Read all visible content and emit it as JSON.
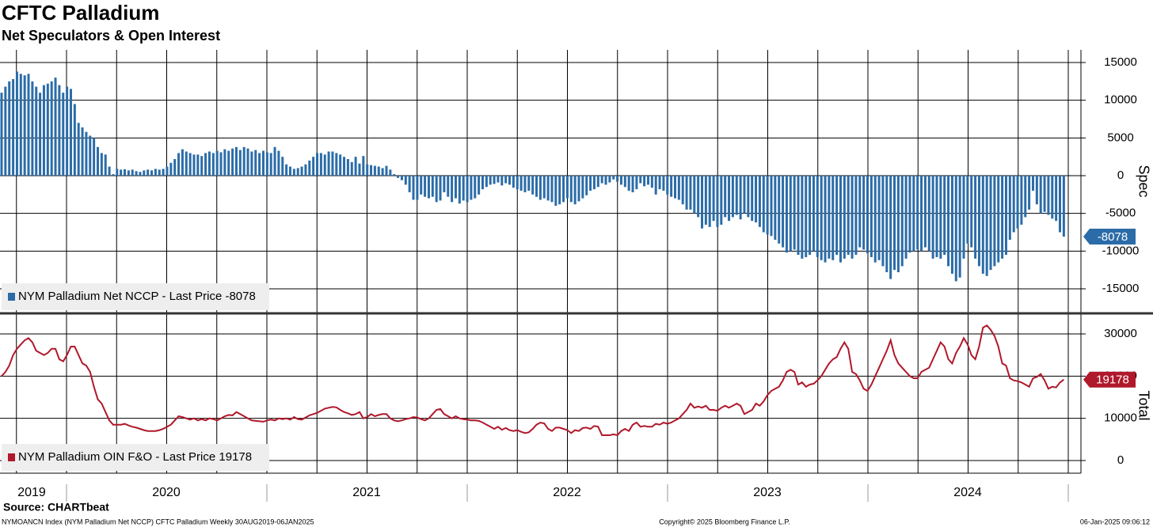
{
  "chart_data": [
    {
      "type": "bar",
      "title": "CFTC Palladium",
      "subtitle": "Net Speculators & Open Interest",
      "y_label": "Spec",
      "ylim": [
        -18150,
        16680
      ],
      "yticks": [
        15000,
        10000,
        5000,
        0,
        -5000,
        -10000,
        -15000
      ],
      "grid": true,
      "series": [
        {
          "name": "NYM Palladium Net NCCP - Last Price -8078",
          "color": "#2b6ca8",
          "values": [
            11000,
            11800,
            12500,
            12800,
            13800,
            13500,
            13300,
            13500,
            12500,
            11800,
            11000,
            12000,
            12200,
            12500,
            13000,
            12000,
            11000,
            11800,
            11500,
            9500,
            7000,
            6400,
            5800,
            5300,
            5000,
            3800,
            3000,
            2800,
            1200,
            200,
            900,
            800,
            850,
            700,
            800,
            600,
            500,
            700,
            800,
            700,
            900,
            800,
            900,
            1200,
            1700,
            2200,
            3000,
            3500,
            3200,
            3000,
            2800,
            2800,
            2600,
            3000,
            3200,
            3000,
            3300,
            3100,
            3500,
            3300,
            3600,
            3800,
            3400,
            3800,
            3600,
            3200,
            3400,
            3000,
            3300,
            3100,
            3000,
            3800,
            3300,
            2500,
            1500,
            1200,
            900,
            1000,
            1200,
            1500,
            2000,
            2500,
            3000,
            3000,
            2800,
            3200,
            3200,
            3000,
            2800,
            2500,
            2200,
            1800,
            2500,
            1600,
            2600,
            1500,
            1400,
            1300,
            1200,
            1000,
            1300,
            800,
            200,
            -300,
            -600,
            -1200,
            -2200,
            -3200,
            -3200,
            -2500,
            -2800,
            -3000,
            -2800,
            -3500,
            -3300,
            -2200,
            -2800,
            -3500,
            -3000,
            -3700,
            -3300,
            -3500,
            -3200,
            -3000,
            -2500,
            -1800,
            -1500,
            -1200,
            -1100,
            -900,
            -1300,
            -1000,
            -1200,
            -1600,
            -1800,
            -2000,
            -2200,
            -2000,
            -2500,
            -2800,
            -3200,
            -3000,
            -3300,
            -3500,
            -4000,
            -3800,
            -3500,
            -3000,
            -3500,
            -3800,
            -3400,
            -3000,
            -2600,
            -2000,
            -1800,
            -1500,
            -1000,
            -1200,
            -900,
            -500,
            -800,
            -1200,
            -1500,
            -2000,
            -2200,
            -1800,
            -1000,
            -1400,
            -1200,
            -1600,
            -2500,
            -1800,
            -2000,
            -2500,
            -2800,
            -3000,
            -3200,
            -3800,
            -4500,
            -4500,
            -5000,
            -5500,
            -7000,
            -6500,
            -6800,
            -6000,
            -6800,
            -6500,
            -5500,
            -6000,
            -5500,
            -5200,
            -5800,
            -5000,
            -5500,
            -6000,
            -6200,
            -6800,
            -7500,
            -7800,
            -8000,
            -8500,
            -9000,
            -9500,
            -10200,
            -10000,
            -9800,
            -10500,
            -11000,
            -10800,
            -10500,
            -10000,
            -10800,
            -11200,
            -11500,
            -11000,
            -11200,
            -10500,
            -11500,
            -11000,
            -10500,
            -11000,
            -10500,
            -9500,
            -9800,
            -10300,
            -10800,
            -11500,
            -11200,
            -12000,
            -12800,
            -13700,
            -12500,
            -12800,
            -12000,
            -11000,
            -10200,
            -10000,
            -9800,
            -10000,
            -9500,
            -10000,
            -11000,
            -10800,
            -11000,
            -10500,
            -12000,
            -13000,
            -14000,
            -13500,
            -11000,
            -9000,
            -9500,
            -11000,
            -12000,
            -13000,
            -13300,
            -12500,
            -12000,
            -11500,
            -11000,
            -10500,
            -8500,
            -7500,
            -7000,
            -6500,
            -5500,
            -4500,
            -2000,
            -3800,
            -5000,
            -4800,
            -5200,
            -5700,
            -6000,
            -7500,
            -8078
          ]
        }
      ]
    },
    {
      "type": "line",
      "y_label": "Total",
      "ylim": [
        -3000,
        34690
      ],
      "yticks": [
        30000,
        20000,
        10000,
        0
      ],
      "grid": true,
      "x_labels": [
        "2019",
        "2020",
        "2021",
        "2022",
        "2023",
        "2024"
      ],
      "series": [
        {
          "name": "NYM Palladium OIN F&O - Last Price 19178",
          "color": "#b0182b",
          "values": [
            20000,
            21000,
            22500,
            25000,
            26500,
            27500,
            28500,
            29000,
            28000,
            26000,
            25500,
            25000,
            25500,
            26500,
            26500,
            24000,
            23500,
            25000,
            27000,
            27000,
            25000,
            23000,
            22500,
            21000,
            17500,
            14500,
            13500,
            11500,
            9500,
            8500,
            8500,
            8500,
            8700,
            8300,
            8000,
            7800,
            7500,
            7200,
            7000,
            7000,
            7000,
            7200,
            7500,
            8000,
            8500,
            9500,
            10500,
            10300,
            10000,
            9700,
            10000,
            9500,
            9800,
            9500,
            10000,
            9800,
            9500,
            10000,
            10500,
            10800,
            10700,
            11500,
            11000,
            10500,
            10000,
            9500,
            9400,
            9300,
            9200,
            9500,
            9700,
            9500,
            10000,
            9800,
            10000,
            9700,
            10300,
            9800,
            9700,
            10200,
            10700,
            11000,
            11300,
            11800,
            12300,
            12500,
            12700,
            12600,
            12000,
            11500,
            11200,
            10800,
            11000,
            11500,
            10000,
            10300,
            11000,
            10500,
            10800,
            11000,
            11000,
            10000,
            9500,
            9300,
            9500,
            9800,
            10000,
            10300,
            10200,
            9800,
            9500,
            10000,
            11000,
            12000,
            12200,
            11000,
            10500,
            10000,
            10500,
            10000,
            9800,
            9700,
            9500,
            9500,
            9400,
            9000,
            8500,
            8000,
            7500,
            8000,
            7300,
            7700,
            7200,
            7000,
            7200,
            6800,
            6500,
            6700,
            7500,
            8500,
            9000,
            8800,
            7500,
            7000,
            7800,
            7800,
            7500,
            7200,
            6500,
            7200,
            7000,
            7700,
            7800,
            7500,
            8200,
            8000,
            6000,
            6000,
            6000,
            6200,
            6000,
            7000,
            7500,
            7000,
            8500,
            9000,
            8000,
            8200,
            8000,
            8000,
            8700,
            8500,
            9000,
            8700,
            9000,
            9500,
            10000,
            11000,
            12000,
            13500,
            12500,
            12800,
            12500,
            13000,
            12000,
            12000,
            11800,
            12500,
            13000,
            12500,
            13000,
            13500,
            13000,
            11000,
            11500,
            12000,
            13500,
            13000,
            14000,
            15500,
            16500,
            17000,
            17500,
            19000,
            21000,
            21500,
            21000,
            18000,
            18500,
            17500,
            18000,
            18200,
            19000,
            20000,
            21500,
            23000,
            24000,
            24500,
            26500,
            28000,
            26500,
            21000,
            20500,
            19000,
            17000,
            16500,
            18000,
            20000,
            22000,
            24000,
            26000,
            28500,
            25000,
            23000,
            22000,
            21000,
            20000,
            19500,
            19500,
            21000,
            21500,
            22000,
            24000,
            26000,
            28000,
            27000,
            24000,
            23000,
            25500,
            27000,
            29000,
            27500,
            25000,
            24000,
            27000,
            31500,
            32000,
            31000,
            29500,
            27000,
            23000,
            22500,
            19500,
            19000,
            18800,
            18500,
            18000,
            17500,
            19500,
            19800,
            20500,
            19000,
            17000,
            17500,
            17300,
            18500,
            19178
          ]
        }
      ]
    }
  ],
  "footer": {
    "source": "Source: CHARTbeat",
    "left": "NYMOANCN Index (NYM Palladium Net NCCP) CFTC Palladium  Weekly 30AUG2019-06JAN2025",
    "center": "Copyright© 2025 Bloomberg Finance L.P.",
    "right": "06-Jan-2025 09:06:12"
  }
}
